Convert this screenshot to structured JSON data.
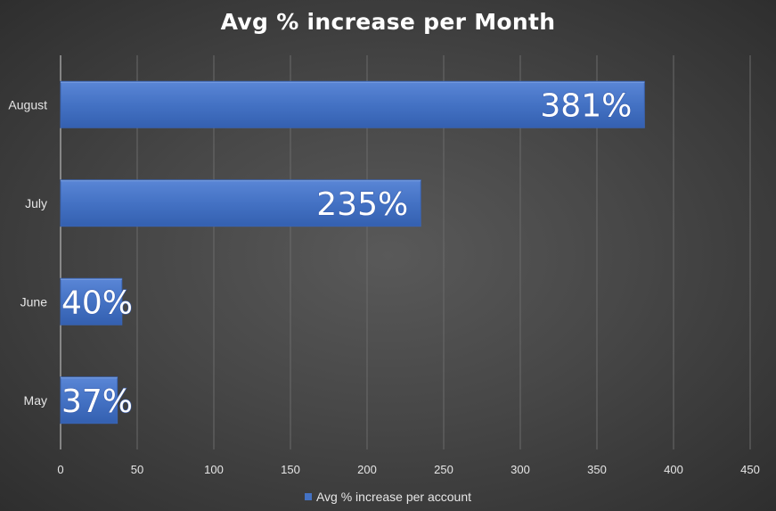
{
  "chart_data": {
    "type": "bar",
    "orientation": "horizontal",
    "title": "Avg % increase per Month",
    "categories": [
      "August",
      "July",
      "June",
      "May"
    ],
    "series": [
      {
        "name": "Avg % increase per account",
        "values": [
          381,
          235,
          40,
          37
        ],
        "data_labels": [
          "381%",
          "235%",
          "40%",
          "37%"
        ],
        "color": "#4472c4"
      }
    ],
    "xlim": [
      0,
      450
    ],
    "x_ticks": [
      0,
      50,
      100,
      150,
      200,
      250,
      300,
      350,
      400,
      450
    ],
    "grid": true,
    "legend": "bottom"
  }
}
